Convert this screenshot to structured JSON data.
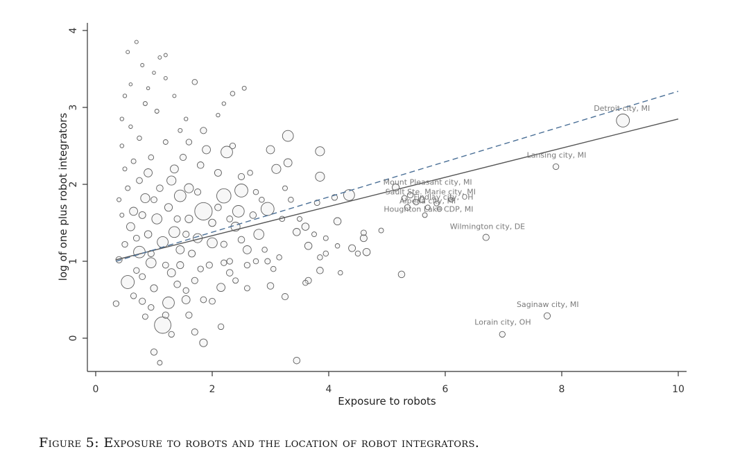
{
  "chart_data": {
    "type": "scatter",
    "xlabel": "Exposure to robots",
    "ylabel": "log of one plus robot integrators",
    "xlim": [
      -0.15,
      10.15
    ],
    "ylim": [
      -0.43,
      4.1
    ],
    "xticks": [
      0,
      2,
      4,
      6,
      8,
      10
    ],
    "yticks": [
      0,
      1,
      2,
      3,
      4
    ],
    "grid": false,
    "marker": "hollow circles sized by population weight",
    "fit_lines": [
      {
        "style": "solid",
        "color": "#555555",
        "x": [
          0.35,
          10.0
        ],
        "y": [
          1.02,
          2.85
        ]
      },
      {
        "style": "dashed",
        "color": "#4a6f96",
        "x": [
          0.35,
          10.0
        ],
        "y": [
          1.0,
          3.21
        ]
      }
    ],
    "labeled_points": [
      {
        "label": "Detroit city, MI",
        "x": 9.05,
        "y": 2.83,
        "size": 5
      },
      {
        "label": "Lansing city, MI",
        "x": 7.9,
        "y": 2.23,
        "size": 1
      },
      {
        "label": "Mount Pleasant city, MI",
        "x": 5.15,
        "y": 1.96,
        "size": 1.5
      },
      {
        "label": "Sault Ste. Marie city, MI",
        "x": 5.4,
        "y": 1.86,
        "size": 1
      },
      {
        "label": "Findlay city, OH",
        "x": 5.6,
        "y": 1.8,
        "size": 1
      },
      {
        "label": "Alpena city, MI",
        "x": 5.5,
        "y": 1.77,
        "size": 1
      },
      {
        "label": "Houghton Lake CDP, MI",
        "x": 5.35,
        "y": 1.7,
        "size": 1
      },
      {
        "label": "Wilmington city, DE",
        "x": 6.7,
        "y": 1.31,
        "size": 1.2
      },
      {
        "label": "Saginaw city, MI",
        "x": 7.75,
        "y": 0.29,
        "size": 1.2
      },
      {
        "label": "Lorain city, OH",
        "x": 6.98,
        "y": 0.05,
        "size": 1
      }
    ],
    "points": [
      {
        "x": 1.85,
        "y": 1.65,
        "size": 9
      },
      {
        "x": 1.15,
        "y": 0.17,
        "size": 8
      },
      {
        "x": 2.2,
        "y": 1.85,
        "size": 6
      },
      {
        "x": 2.5,
        "y": 1.92,
        "size": 5
      },
      {
        "x": 2.95,
        "y": 1.68,
        "size": 5
      },
      {
        "x": 0.55,
        "y": 0.73,
        "size": 5
      },
      {
        "x": 1.25,
        "y": 0.46,
        "size": 4
      },
      {
        "x": 2.45,
        "y": 1.65,
        "size": 4
      },
      {
        "x": 1.45,
        "y": 1.85,
        "size": 4
      },
      {
        "x": 0.75,
        "y": 1.12,
        "size": 4
      },
      {
        "x": 2.25,
        "y": 2.42,
        "size": 4
      },
      {
        "x": 3.3,
        "y": 2.63,
        "size": 3.5
      },
      {
        "x": 1.15,
        "y": 1.25,
        "size": 3.5
      },
      {
        "x": 1.35,
        "y": 1.38,
        "size": 3.5
      },
      {
        "x": 0.95,
        "y": 0.98,
        "size": 3
      },
      {
        "x": 4.35,
        "y": 1.86,
        "size": 3.5
      },
      {
        "x": 2.0,
        "y": 1.24,
        "size": 3
      },
      {
        "x": 1.05,
        "y": 1.55,
        "size": 3
      },
      {
        "x": 2.8,
        "y": 1.35,
        "size": 3
      },
      {
        "x": 0.85,
        "y": 1.82,
        "size": 2.5
      },
      {
        "x": 1.6,
        "y": 1.95,
        "size": 2.5
      },
      {
        "x": 1.75,
        "y": 1.3,
        "size": 2.5
      },
      {
        "x": 3.1,
        "y": 2.2,
        "size": 2.5
      },
      {
        "x": 2.4,
        "y": 1.45,
        "size": 2.5
      },
      {
        "x": 1.3,
        "y": 2.05,
        "size": 2.5
      },
      {
        "x": 3.85,
        "y": 2.43,
        "size": 2.5
      },
      {
        "x": 3.85,
        "y": 2.1,
        "size": 2.5
      },
      {
        "x": 1.9,
        "y": 2.45,
        "size": 2
      },
      {
        "x": 0.9,
        "y": 2.15,
        "size": 2
      },
      {
        "x": 2.15,
        "y": 0.66,
        "size": 2
      },
      {
        "x": 1.3,
        "y": 0.85,
        "size": 2
      },
      {
        "x": 1.55,
        "y": 0.5,
        "size": 2
      },
      {
        "x": 0.6,
        "y": 1.45,
        "size": 2
      },
      {
        "x": 0.65,
        "y": 1.65,
        "size": 2
      },
      {
        "x": 2.6,
        "y": 1.15,
        "size": 2
      },
      {
        "x": 1.45,
        "y": 1.15,
        "size": 2
      },
      {
        "x": 3.0,
        "y": 2.45,
        "size": 2
      },
      {
        "x": 3.3,
        "y": 2.28,
        "size": 2
      },
      {
        "x": 1.35,
        "y": 2.2,
        "size": 2
      },
      {
        "x": 3.45,
        "y": 1.38,
        "size": 1.6
      },
      {
        "x": 3.6,
        "y": 1.45,
        "size": 1.6
      },
      {
        "x": 3.65,
        "y": 1.2,
        "size": 1.6
      },
      {
        "x": 4.15,
        "y": 1.52,
        "size": 1.6
      },
      {
        "x": 4.65,
        "y": 1.12,
        "size": 1.6
      },
      {
        "x": 4.4,
        "y": 1.17,
        "size": 1.4
      },
      {
        "x": 4.6,
        "y": 1.3,
        "size": 1.4
      },
      {
        "x": 5.25,
        "y": 0.83,
        "size": 1.3
      },
      {
        "x": 3.85,
        "y": 0.88,
        "size": 1.3
      },
      {
        "x": 3.65,
        "y": 0.75,
        "size": 1.2
      },
      {
        "x": 3.0,
        "y": 0.68,
        "size": 1.3
      },
      {
        "x": 3.25,
        "y": 0.54,
        "size": 1.2
      },
      {
        "x": 3.45,
        "y": -0.29,
        "size": 1.3
      },
      {
        "x": 1.85,
        "y": -0.06,
        "size": 1.8
      },
      {
        "x": 1.0,
        "y": -0.18,
        "size": 1.2
      },
      {
        "x": 0.35,
        "y": 0.45,
        "size": 1
      },
      {
        "x": 0.4,
        "y": 1.02,
        "size": 1.2
      },
      {
        "x": 1.7,
        "y": 0.08,
        "size": 1.2
      },
      {
        "x": 2.15,
        "y": 0.15,
        "size": 1
      },
      {
        "x": 1.1,
        "y": -0.32,
        "size": 0.7
      },
      {
        "x": 1.7,
        "y": 3.33,
        "size": 0.8
      },
      {
        "x": 2.35,
        "y": 3.18,
        "size": 0.6
      },
      {
        "x": 2.55,
        "y": 3.25,
        "size": 0.5
      },
      {
        "x": 1.85,
        "y": 2.7,
        "size": 1.2
      },
      {
        "x": 2.35,
        "y": 2.5,
        "size": 1
      },
      {
        "x": 1.6,
        "y": 2.55,
        "size": 1
      },
      {
        "x": 1.5,
        "y": 2.35,
        "size": 1.2
      },
      {
        "x": 2.5,
        "y": 2.1,
        "size": 1.2
      },
      {
        "x": 4.1,
        "y": 1.83,
        "size": 1
      },
      {
        "x": 3.8,
        "y": 1.76,
        "size": 0.9
      },
      {
        "x": 4.9,
        "y": 1.4,
        "size": 0.7
      },
      {
        "x": 4.6,
        "y": 1.37,
        "size": 0.9
      },
      {
        "x": 4.5,
        "y": 1.1,
        "size": 0.8
      },
      {
        "x": 4.2,
        "y": 0.85,
        "size": 0.6
      },
      {
        "x": 4.15,
        "y": 1.2,
        "size": 0.6
      },
      {
        "x": 3.95,
        "y": 1.1,
        "size": 0.8
      },
      {
        "x": 3.6,
        "y": 0.72,
        "size": 0.8
      },
      {
        "x": 3.85,
        "y": 1.05,
        "size": 0.8
      },
      {
        "x": 3.15,
        "y": 1.05,
        "size": 0.8
      },
      {
        "x": 2.95,
        "y": 1.0,
        "size": 0.9
      },
      {
        "x": 3.05,
        "y": 0.9,
        "size": 0.8
      },
      {
        "x": 5.65,
        "y": 1.6,
        "size": 0.7
      },
      {
        "x": 5.7,
        "y": 1.7,
        "size": 0.7
      },
      {
        "x": 5.85,
        "y": 1.75,
        "size": 0.7
      },
      {
        "x": 6.1,
        "y": 1.8,
        "size": 0.7
      },
      {
        "x": 5.9,
        "y": 1.68,
        "size": 0.7
      },
      {
        "x": 5.3,
        "y": 1.82,
        "size": 0.9
      },
      {
        "x": 2.6,
        "y": 0.95,
        "size": 1
      },
      {
        "x": 2.3,
        "y": 1.0,
        "size": 1
      },
      {
        "x": 1.95,
        "y": 0.95,
        "size": 1.2
      },
      {
        "x": 1.7,
        "y": 0.75,
        "size": 1.2
      },
      {
        "x": 1.4,
        "y": 0.7,
        "size": 1.3
      },
      {
        "x": 0.8,
        "y": 0.48,
        "size": 1.2
      },
      {
        "x": 0.65,
        "y": 0.55,
        "size": 1
      },
      {
        "x": 0.7,
        "y": 0.88,
        "size": 1
      },
      {
        "x": 0.5,
        "y": 1.22,
        "size": 1
      },
      {
        "x": 0.55,
        "y": 1.95,
        "size": 0.7
      },
      {
        "x": 0.65,
        "y": 2.3,
        "size": 0.7
      },
      {
        "x": 0.75,
        "y": 2.6,
        "size": 0.6
      },
      {
        "x": 0.95,
        "y": 2.35,
        "size": 0.8
      },
      {
        "x": 1.2,
        "y": 2.55,
        "size": 0.7
      },
      {
        "x": 1.05,
        "y": 2.95,
        "size": 0.5
      },
      {
        "x": 0.85,
        "y": 3.05,
        "size": 0.5
      },
      {
        "x": 0.5,
        "y": 3.15,
        "size": 0.4
      },
      {
        "x": 0.55,
        "y": 3.72,
        "size": 0.35
      },
      {
        "x": 0.7,
        "y": 3.85,
        "size": 0.35
      },
      {
        "x": 0.8,
        "y": 3.55,
        "size": 0.35
      },
      {
        "x": 1.1,
        "y": 3.65,
        "size": 0.35
      },
      {
        "x": 1.2,
        "y": 3.68,
        "size": 0.35
      },
      {
        "x": 1.0,
        "y": 3.45,
        "size": 0.3
      },
      {
        "x": 1.2,
        "y": 3.38,
        "size": 0.35
      },
      {
        "x": 0.6,
        "y": 3.3,
        "size": 0.3
      },
      {
        "x": 0.9,
        "y": 3.25,
        "size": 0.3
      },
      {
        "x": 1.35,
        "y": 3.15,
        "size": 0.35
      },
      {
        "x": 1.55,
        "y": 2.85,
        "size": 0.4
      },
      {
        "x": 2.1,
        "y": 2.9,
        "size": 0.4
      },
      {
        "x": 2.2,
        "y": 3.05,
        "size": 0.4
      },
      {
        "x": 0.45,
        "y": 2.85,
        "size": 0.4
      },
      {
        "x": 0.6,
        "y": 2.75,
        "size": 0.4
      },
      {
        "x": 1.45,
        "y": 2.7,
        "size": 0.5
      },
      {
        "x": 0.45,
        "y": 2.5,
        "size": 0.45
      },
      {
        "x": 0.5,
        "y": 2.2,
        "size": 0.5
      },
      {
        "x": 0.4,
        "y": 1.8,
        "size": 0.5
      },
      {
        "x": 0.45,
        "y": 1.6,
        "size": 0.5
      },
      {
        "x": 1.25,
        "y": 1.7,
        "size": 1.8
      },
      {
        "x": 1.6,
        "y": 1.55,
        "size": 1.8
      },
      {
        "x": 0.9,
        "y": 1.35,
        "size": 1.6
      },
      {
        "x": 1.0,
        "y": 0.65,
        "size": 1.5
      },
      {
        "x": 1.45,
        "y": 0.95,
        "size": 1.5
      },
      {
        "x": 2.3,
        "y": 0.85,
        "size": 1.3
      },
      {
        "x": 2.0,
        "y": 1.5,
        "size": 1.6
      },
      {
        "x": 2.1,
        "y": 2.15,
        "size": 1.4
      },
      {
        "x": 1.8,
        "y": 2.25,
        "size": 1.3
      },
      {
        "x": 0.8,
        "y": 1.6,
        "size": 1.4
      },
      {
        "x": 1.1,
        "y": 1.95,
        "size": 1.3
      },
      {
        "x": 0.75,
        "y": 2.05,
        "size": 1.1
      },
      {
        "x": 1.65,
        "y": 1.1,
        "size": 1.4
      },
      {
        "x": 2.5,
        "y": 1.28,
        "size": 1.3
      },
      {
        "x": 2.7,
        "y": 1.6,
        "size": 1.3
      },
      {
        "x": 2.2,
        "y": 1.22,
        "size": 1.2
      },
      {
        "x": 1.2,
        "y": 0.3,
        "size": 1.2
      },
      {
        "x": 1.3,
        "y": 0.05,
        "size": 1
      },
      {
        "x": 0.85,
        "y": 0.28,
        "size": 0.9
      },
      {
        "x": 1.6,
        "y": 0.3,
        "size": 1.2
      },
      {
        "x": 1.85,
        "y": 0.5,
        "size": 1.1
      },
      {
        "x": 2.0,
        "y": 0.48,
        "size": 1.1
      },
      {
        "x": 2.6,
        "y": 0.65,
        "size": 0.9
      },
      {
        "x": 2.4,
        "y": 0.75,
        "size": 0.9
      },
      {
        "x": 0.95,
        "y": 0.4,
        "size": 1
      },
      {
        "x": 1.55,
        "y": 0.62,
        "size": 1
      },
      {
        "x": 2.75,
        "y": 1.0,
        "size": 0.8
      },
      {
        "x": 2.9,
        "y": 1.15,
        "size": 0.8
      },
      {
        "x": 2.75,
        "y": 1.9,
        "size": 0.8
      },
      {
        "x": 2.85,
        "y": 1.8,
        "size": 0.8
      },
      {
        "x": 2.65,
        "y": 2.15,
        "size": 0.8
      },
      {
        "x": 3.25,
        "y": 1.95,
        "size": 0.7
      },
      {
        "x": 3.35,
        "y": 1.8,
        "size": 0.8
      },
      {
        "x": 3.2,
        "y": 1.55,
        "size": 0.8
      },
      {
        "x": 3.5,
        "y": 1.55,
        "size": 0.7
      },
      {
        "x": 3.75,
        "y": 1.35,
        "size": 0.7
      },
      {
        "x": 3.95,
        "y": 1.3,
        "size": 0.7
      },
      {
        "x": 1.4,
        "y": 1.55,
        "size": 1.2
      },
      {
        "x": 1.0,
        "y": 1.8,
        "size": 1.1
      },
      {
        "x": 0.7,
        "y": 1.3,
        "size": 1.1
      },
      {
        "x": 1.75,
        "y": 1.9,
        "size": 1.2
      },
      {
        "x": 2.1,
        "y": 1.7,
        "size": 1.3
      },
      {
        "x": 2.3,
        "y": 1.55,
        "size": 1.1
      },
      {
        "x": 1.55,
        "y": 1.35,
        "size": 1.2
      },
      {
        "x": 0.95,
        "y": 1.1,
        "size": 1.2
      },
      {
        "x": 1.2,
        "y": 0.95,
        "size": 1.1
      },
      {
        "x": 0.8,
        "y": 0.8,
        "size": 1.1
      },
      {
        "x": 1.8,
        "y": 0.9,
        "size": 1
      },
      {
        "x": 2.2,
        "y": 0.98,
        "size": 1
      }
    ]
  },
  "caption": "Figure 5: Exposure to robots and the location of robot integrators."
}
